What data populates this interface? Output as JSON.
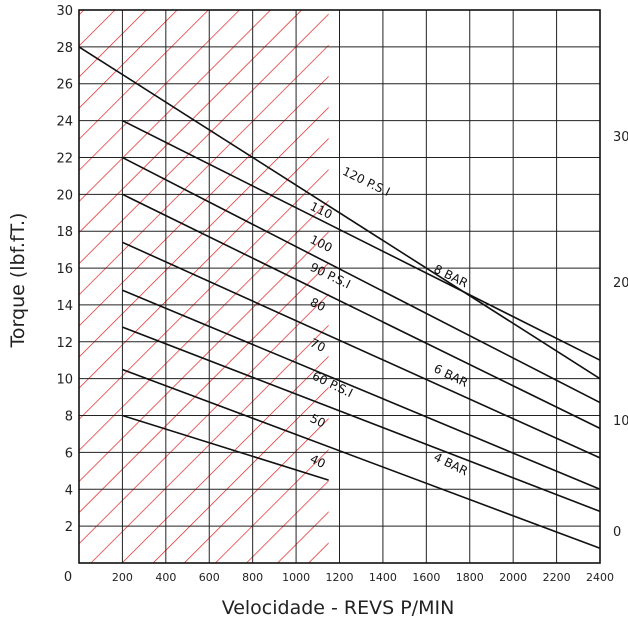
{
  "chart_data": {
    "type": "line",
    "title": "",
    "xlabel": "Velocidade - REVS P/MIN",
    "ylabel": "Torque (lbf.fT.)",
    "xlim": [
      0,
      2400
    ],
    "ylim": [
      0,
      30
    ],
    "x_ticks": [
      0,
      200,
      400,
      600,
      800,
      1000,
      1200,
      1400,
      1600,
      1800,
      2000,
      2200,
      2400
    ],
    "x_tick_labels": [
      "0",
      "200",
      "400",
      "600",
      "800",
      "1000",
      "1200",
      "1400",
      "1600",
      "1800",
      "2000",
      "2200",
      "2400"
    ],
    "y_ticks": [
      2,
      4,
      6,
      8,
      10,
      12,
      14,
      16,
      18,
      20,
      22,
      24,
      26,
      28,
      30
    ],
    "y_tick_labels": [
      "2",
      "4",
      "6",
      "8",
      "10",
      "12",
      "14",
      "16",
      "18",
      "20",
      "22",
      "24",
      "26",
      "28",
      "30"
    ],
    "right_axis_tick_labels": [
      "0",
      "10",
      "20",
      "30"
    ],
    "right_axis_values": [
      0,
      10,
      20,
      30
    ],
    "grid": true,
    "shaded_region": {
      "x": [
        0,
        1150
      ],
      "color": "#e02020",
      "pattern": "diagonal hatch"
    },
    "series": [
      {
        "name": "120 P.S.I",
        "x": [
          0,
          2400
        ],
        "y": [
          28.0,
          10.0
        ]
      },
      {
        "name": "110",
        "x": [
          200,
          2400
        ],
        "y": [
          24.0,
          11.0
        ]
      },
      {
        "name": "100",
        "x": [
          200,
          2400
        ],
        "y": [
          22.0,
          8.7
        ]
      },
      {
        "name": "90 P.S.I",
        "x": [
          200,
          2400
        ],
        "y": [
          20.0,
          7.3
        ]
      },
      {
        "name": "80",
        "x": [
          200,
          2400
        ],
        "y": [
          17.4,
          5.7
        ]
      },
      {
        "name": "70",
        "x": [
          200,
          2400
        ],
        "y": [
          14.8,
          4.0
        ]
      },
      {
        "name": "60 P.S.I",
        "x": [
          200,
          2400
        ],
        "y": [
          12.8,
          2.8
        ]
      },
      {
        "name": "50",
        "x": [
          200,
          2400
        ],
        "y": [
          10.5,
          0.8
        ]
      },
      {
        "name": "40",
        "x": [
          200,
          1150
        ],
        "y": [
          8.0,
          4.5
        ]
      }
    ],
    "annotations": [
      {
        "text": "8 BAR",
        "x": 1630,
        "y": 15.8
      },
      {
        "text": "6 BAR",
        "x": 1630,
        "y": 10.4
      },
      {
        "text": "4 BAR",
        "x": 1630,
        "y": 5.6
      }
    ],
    "line_labels": [
      {
        "text": "120 P.S.I",
        "x": 1210,
        "y": 21.1
      },
      {
        "text": "110",
        "x": 1060,
        "y": 19.2
      },
      {
        "text": "100",
        "x": 1060,
        "y": 17.4
      },
      {
        "text": "90 P.S.I",
        "x": 1060,
        "y": 15.9
      },
      {
        "text": "80",
        "x": 1060,
        "y": 14.0
      },
      {
        "text": "70",
        "x": 1060,
        "y": 11.8
      },
      {
        "text": "60 P.S.I",
        "x": 1070,
        "y": 10.0
      },
      {
        "text": "50",
        "x": 1060,
        "y": 7.7
      },
      {
        "text": "40",
        "x": 1060,
        "y": 5.5
      }
    ]
  }
}
